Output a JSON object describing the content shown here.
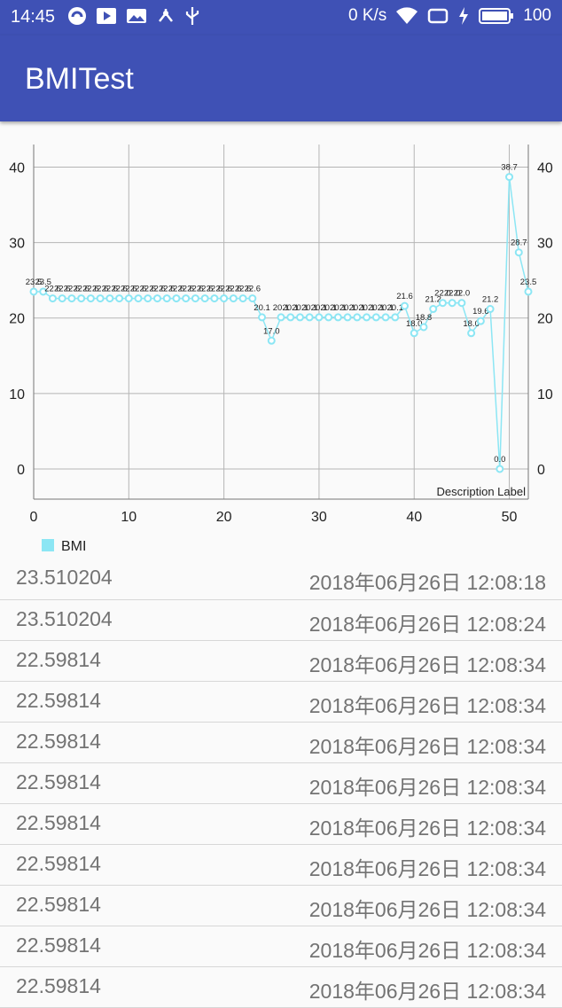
{
  "status_bar": {
    "time": "14:45",
    "net_speed": "0 K/s",
    "battery": "100",
    "left_icons": [
      "sync-icon",
      "play-store-icon",
      "image-icon",
      "share-hub-icon",
      "usb-icon"
    ],
    "right_icons": [
      "wifi-icon",
      "sim-icon",
      "charging-icon",
      "battery-icon"
    ]
  },
  "app_bar": {
    "title": "BMITest",
    "color": "#3f51b5"
  },
  "chart_data": {
    "type": "line",
    "xlim": [
      0,
      52
    ],
    "ylim": [
      -4,
      43
    ],
    "xticks": [
      0,
      10,
      20,
      30,
      40,
      50
    ],
    "yticks": [
      0,
      10,
      20,
      30,
      40
    ],
    "description": "Description Label",
    "legend_position": "bottom-left",
    "grid": true,
    "series": [
      {
        "name": "BMI",
        "color": "#8ce6f4",
        "x": [
          0,
          1,
          2,
          3,
          4,
          5,
          6,
          7,
          8,
          9,
          10,
          11,
          12,
          13,
          14,
          15,
          16,
          17,
          18,
          19,
          20,
          21,
          22,
          23,
          24,
          25,
          26,
          27,
          28,
          29,
          30,
          31,
          32,
          33,
          34,
          35,
          36,
          37,
          38,
          39,
          40,
          41,
          42,
          43,
          44,
          45,
          46,
          47,
          48,
          49,
          50,
          51,
          52
        ],
        "y": [
          23.5,
          23.5,
          22.6,
          22.6,
          22.6,
          22.6,
          22.6,
          22.6,
          22.6,
          22.6,
          22.6,
          22.6,
          22.6,
          22.6,
          22.6,
          22.6,
          22.6,
          22.6,
          22.6,
          22.6,
          22.6,
          22.6,
          22.6,
          22.6,
          20.1,
          17.0,
          20.1,
          20.1,
          20.1,
          20.1,
          20.1,
          20.1,
          20.1,
          20.1,
          20.1,
          20.1,
          20.1,
          20.1,
          20.1,
          21.6,
          18.0,
          18.8,
          21.2,
          22.0,
          22.0,
          22.0,
          18.0,
          19.6,
          21.2,
          0.0,
          38.7,
          28.7,
          23.5
        ],
        "labels": [
          "23.5",
          "23.5",
          "22.6",
          "22.6",
          "22.6",
          "22.6",
          "22.6",
          "22.6",
          "22.6",
          "22.6",
          "22.6",
          "22.6",
          "22.6",
          "22.6",
          "22.6",
          "22.6",
          "22.6",
          "22.6",
          "22.6",
          "22.6",
          "22.6",
          "22.6",
          "22.6",
          "22.6",
          "20.1",
          "17.0",
          "20.1",
          "20.1",
          "20.1",
          "20.1",
          "20.1",
          "20.1",
          "20.1",
          "20.1",
          "20.1",
          "20.1",
          "20.1",
          "20.1",
          "20.1",
          "21.6",
          "18.0",
          "18.8",
          "21.2",
          "22.0",
          "22.0",
          "22.0",
          "18.0",
          "19.6",
          "21.2",
          "0.0",
          "38.7",
          "28.7",
          "23.5"
        ]
      }
    ]
  },
  "records": [
    {
      "bmi": "23.510204",
      "time": "2018年06月26日 12:08:18"
    },
    {
      "bmi": "23.510204",
      "time": "2018年06月26日 12:08:24"
    },
    {
      "bmi": "22.59814",
      "time": "2018年06月26日 12:08:34"
    },
    {
      "bmi": "22.59814",
      "time": "2018年06月26日 12:08:34"
    },
    {
      "bmi": "22.59814",
      "time": "2018年06月26日 12:08:34"
    },
    {
      "bmi": "22.59814",
      "time": "2018年06月26日 12:08:34"
    },
    {
      "bmi": "22.59814",
      "time": "2018年06月26日 12:08:34"
    },
    {
      "bmi": "22.59814",
      "time": "2018年06月26日 12:08:34"
    },
    {
      "bmi": "22.59814",
      "time": "2018年06月26日 12:08:34"
    },
    {
      "bmi": "22.59814",
      "time": "2018年06月26日 12:08:34"
    },
    {
      "bmi": "22.59814",
      "time": "2018年06月26日 12:08:34"
    }
  ]
}
